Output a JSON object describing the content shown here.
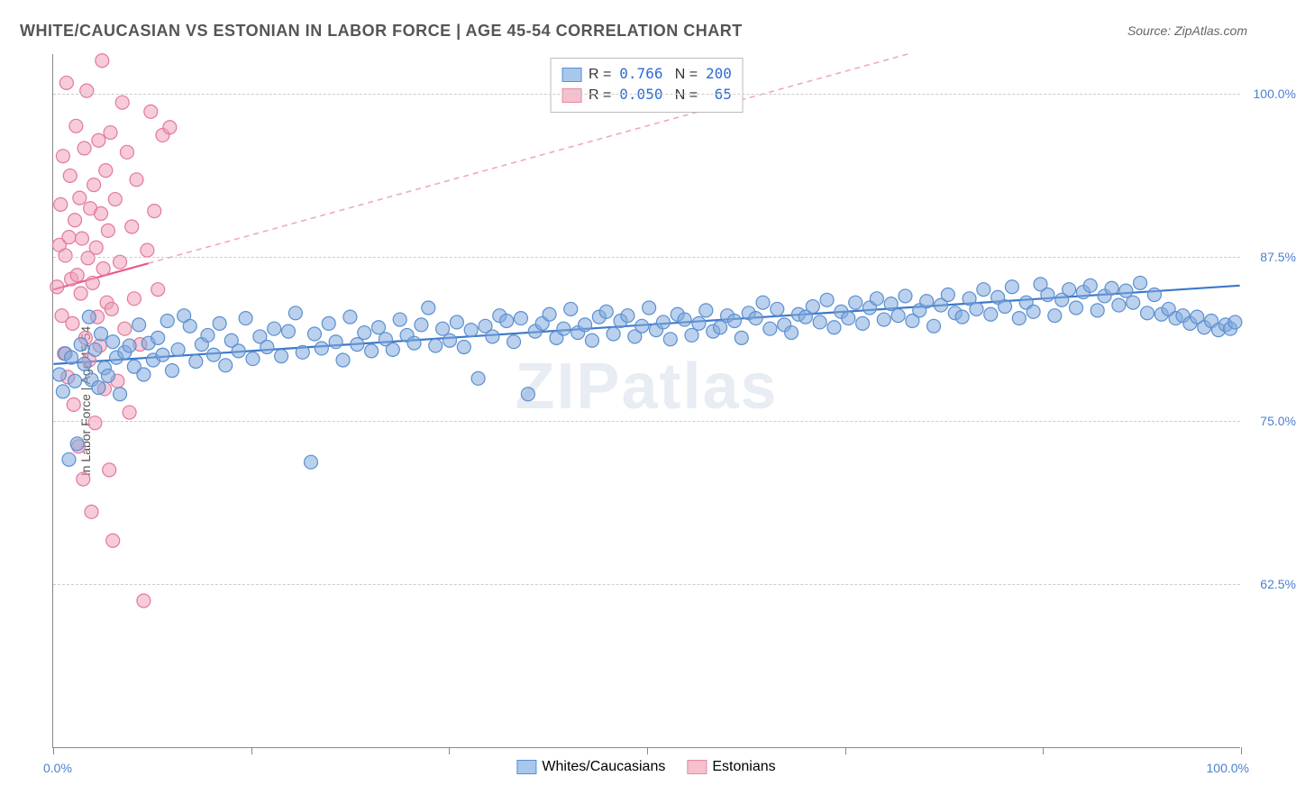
{
  "title": "WHITE/CAUCASIAN VS ESTONIAN IN LABOR FORCE | AGE 45-54 CORRELATION CHART",
  "source": "Source: ZipAtlas.com",
  "watermark": "ZIPatlas",
  "ylabel": "In Labor Force | Age 45-54",
  "xaxis": {
    "min_label": "0.0%",
    "max_label": "100.0%",
    "min": 0,
    "max": 100,
    "tick_positions": [
      0,
      16.67,
      33.33,
      50,
      66.67,
      83.33,
      100
    ]
  },
  "yaxis": {
    "min": 50,
    "max": 103,
    "ticks": [
      62.5,
      75.0,
      87.5,
      100.0
    ],
    "tick_labels": [
      "62.5%",
      "75.0%",
      "87.5%",
      "100.0%"
    ]
  },
  "grid_color": "#cccccc",
  "axis_color": "#888888",
  "background_color": "#ffffff",
  "legend_top": {
    "rows": [
      {
        "swatch_fill": "#a8c7ec",
        "swatch_stroke": "#5b8fd1",
        "r_label": "R =",
        "r_val": "0.766",
        "n_label": "N =",
        "n_val": "200"
      },
      {
        "swatch_fill": "#f6c0cd",
        "swatch_stroke": "#e58aa3",
        "r_label": "R =",
        "r_val": "0.050",
        "n_label": "N =",
        "n_val": " 65"
      }
    ]
  },
  "legend_bottom": [
    {
      "swatch_fill": "#a8c7ec",
      "swatch_stroke": "#5b8fd1",
      "label": "Whites/Caucasians"
    },
    {
      "swatch_fill": "#f6c0cd",
      "swatch_stroke": "#e58aa3",
      "label": "Estonians"
    }
  ],
  "series": {
    "whites": {
      "type": "scatter",
      "marker": "circle",
      "marker_radius": 7.5,
      "fill": "rgba(130,170,220,0.55)",
      "stroke": "#5b8fd1",
      "stroke_width": 1.2,
      "trend": {
        "x1": 0,
        "y1": 79.3,
        "x2": 100,
        "y2": 85.3,
        "color": "#3d78c9",
        "width": 2.2,
        "dash": "none"
      },
      "points": [
        [
          0.5,
          78.5
        ],
        [
          0.8,
          77.2
        ],
        [
          1.0,
          80.1
        ],
        [
          1.3,
          72.0
        ],
        [
          1.5,
          79.8
        ],
        [
          1.8,
          78.0
        ],
        [
          2.0,
          73.2
        ],
        [
          2.3,
          80.8
        ],
        [
          2.6,
          79.3
        ],
        [
          3.0,
          82.9
        ],
        [
          3.2,
          78.1
        ],
        [
          3.5,
          80.4
        ],
        [
          3.8,
          77.5
        ],
        [
          4.0,
          81.6
        ],
        [
          4.3,
          79.0
        ],
        [
          4.6,
          78.4
        ],
        [
          5.0,
          81.0
        ],
        [
          5.3,
          79.8
        ],
        [
          5.6,
          77.0
        ],
        [
          6.0,
          80.2
        ],
        [
          6.4,
          80.7
        ],
        [
          6.8,
          79.1
        ],
        [
          7.2,
          82.3
        ],
        [
          7.6,
          78.5
        ],
        [
          8.0,
          80.9
        ],
        [
          8.4,
          79.6
        ],
        [
          8.8,
          81.3
        ],
        [
          9.2,
          80.0
        ],
        [
          9.6,
          82.6
        ],
        [
          10.0,
          78.8
        ],
        [
          10.5,
          80.4
        ],
        [
          11.0,
          83.0
        ],
        [
          11.5,
          82.2
        ],
        [
          12.0,
          79.5
        ],
        [
          12.5,
          80.8
        ],
        [
          13.0,
          81.5
        ],
        [
          13.5,
          80.0
        ],
        [
          14.0,
          82.4
        ],
        [
          14.5,
          79.2
        ],
        [
          15.0,
          81.1
        ],
        [
          15.6,
          80.3
        ],
        [
          16.2,
          82.8
        ],
        [
          16.8,
          79.7
        ],
        [
          17.4,
          81.4
        ],
        [
          18.0,
          80.6
        ],
        [
          18.6,
          82.0
        ],
        [
          19.2,
          79.9
        ],
        [
          19.8,
          81.8
        ],
        [
          20.4,
          83.2
        ],
        [
          21.0,
          80.2
        ],
        [
          21.7,
          71.8
        ],
        [
          22.0,
          81.6
        ],
        [
          22.6,
          80.5
        ],
        [
          23.2,
          82.4
        ],
        [
          23.8,
          81.0
        ],
        [
          24.4,
          79.6
        ],
        [
          25.0,
          82.9
        ],
        [
          25.6,
          80.8
        ],
        [
          26.2,
          81.7
        ],
        [
          26.8,
          80.3
        ],
        [
          27.4,
          82.1
        ],
        [
          28.0,
          81.2
        ],
        [
          28.6,
          80.4
        ],
        [
          29.2,
          82.7
        ],
        [
          29.8,
          81.5
        ],
        [
          30.4,
          80.9
        ],
        [
          31.0,
          82.3
        ],
        [
          31.6,
          83.6
        ],
        [
          32.2,
          80.7
        ],
        [
          32.8,
          82.0
        ],
        [
          33.4,
          81.1
        ],
        [
          34.0,
          82.5
        ],
        [
          34.6,
          80.6
        ],
        [
          35.2,
          81.9
        ],
        [
          35.8,
          78.2
        ],
        [
          36.4,
          82.2
        ],
        [
          37.0,
          81.4
        ],
        [
          37.6,
          83.0
        ],
        [
          38.2,
          82.6
        ],
        [
          38.8,
          81.0
        ],
        [
          39.4,
          82.8
        ],
        [
          40.0,
          77.0
        ],
        [
          40.6,
          81.8
        ],
        [
          41.2,
          82.4
        ],
        [
          41.8,
          83.1
        ],
        [
          42.4,
          81.3
        ],
        [
          43.0,
          82.0
        ],
        [
          43.6,
          83.5
        ],
        [
          44.2,
          81.7
        ],
        [
          44.8,
          82.3
        ],
        [
          45.4,
          81.1
        ],
        [
          46.0,
          82.9
        ],
        [
          46.6,
          83.3
        ],
        [
          47.2,
          81.6
        ],
        [
          47.8,
          82.6
        ],
        [
          48.4,
          83.0
        ],
        [
          49.0,
          81.4
        ],
        [
          49.6,
          82.2
        ],
        [
          50.2,
          83.6
        ],
        [
          50.8,
          81.9
        ],
        [
          51.4,
          82.5
        ],
        [
          52.0,
          81.2
        ],
        [
          52.6,
          83.1
        ],
        [
          53.2,
          82.7
        ],
        [
          53.8,
          81.5
        ],
        [
          54.4,
          82.4
        ],
        [
          55.0,
          83.4
        ],
        [
          55.6,
          81.8
        ],
        [
          56.2,
          82.1
        ],
        [
          56.8,
          83.0
        ],
        [
          57.4,
          82.6
        ],
        [
          58.0,
          81.3
        ],
        [
          58.6,
          83.2
        ],
        [
          59.2,
          82.8
        ],
        [
          59.8,
          84.0
        ],
        [
          60.4,
          82.0
        ],
        [
          61.0,
          83.5
        ],
        [
          61.6,
          82.3
        ],
        [
          62.2,
          81.7
        ],
        [
          62.8,
          83.1
        ],
        [
          63.4,
          82.9
        ],
        [
          64.0,
          83.7
        ],
        [
          64.6,
          82.5
        ],
        [
          65.2,
          84.2
        ],
        [
          65.8,
          82.1
        ],
        [
          66.4,
          83.3
        ],
        [
          67.0,
          82.8
        ],
        [
          67.6,
          84.0
        ],
        [
          68.2,
          82.4
        ],
        [
          68.8,
          83.6
        ],
        [
          69.4,
          84.3
        ],
        [
          70.0,
          82.7
        ],
        [
          70.6,
          83.9
        ],
        [
          71.2,
          83.0
        ],
        [
          71.8,
          84.5
        ],
        [
          72.4,
          82.6
        ],
        [
          73.0,
          83.4
        ],
        [
          73.6,
          84.1
        ],
        [
          74.2,
          82.2
        ],
        [
          74.8,
          83.8
        ],
        [
          75.4,
          84.6
        ],
        [
          76.0,
          83.2
        ],
        [
          76.6,
          82.9
        ],
        [
          77.2,
          84.3
        ],
        [
          77.8,
          83.5
        ],
        [
          78.4,
          85.0
        ],
        [
          79.0,
          83.1
        ],
        [
          79.6,
          84.4
        ],
        [
          80.2,
          83.7
        ],
        [
          80.8,
          85.2
        ],
        [
          81.4,
          82.8
        ],
        [
          82.0,
          84.0
        ],
        [
          82.6,
          83.3
        ],
        [
          83.2,
          85.4
        ],
        [
          83.8,
          84.6
        ],
        [
          84.4,
          83.0
        ],
        [
          85.0,
          84.2
        ],
        [
          85.6,
          85.0
        ],
        [
          86.2,
          83.6
        ],
        [
          86.8,
          84.8
        ],
        [
          87.4,
          85.3
        ],
        [
          88.0,
          83.4
        ],
        [
          88.6,
          84.5
        ],
        [
          89.2,
          85.1
        ],
        [
          89.8,
          83.8
        ],
        [
          90.4,
          84.9
        ],
        [
          91.0,
          84.0
        ],
        [
          91.6,
          85.5
        ],
        [
          92.2,
          83.2
        ],
        [
          92.8,
          84.6
        ],
        [
          93.4,
          83.1
        ],
        [
          94.0,
          83.5
        ],
        [
          94.6,
          82.8
        ],
        [
          95.2,
          83.0
        ],
        [
          95.8,
          82.4
        ],
        [
          96.4,
          82.9
        ],
        [
          97.0,
          82.1
        ],
        [
          97.6,
          82.6
        ],
        [
          98.2,
          81.9
        ],
        [
          98.8,
          82.3
        ],
        [
          99.2,
          82.0
        ],
        [
          99.6,
          82.5
        ]
      ]
    },
    "estonians": {
      "type": "scatter",
      "marker": "circle",
      "marker_radius": 7.5,
      "fill": "rgba(240,160,185,0.55)",
      "stroke": "#e17a9a",
      "stroke_width": 1.2,
      "trend_solid": {
        "x1": 0,
        "y1": 85.0,
        "x2": 8,
        "y2": 87.0,
        "color": "#e85b88",
        "width": 2.2
      },
      "trend_dash": {
        "x1": 8,
        "y1": 87.0,
        "x2": 72,
        "y2": 103.0,
        "color": "#f0a8bc",
        "width": 1.6,
        "dash": "6,5"
      },
      "points": [
        [
          0.3,
          85.2
        ],
        [
          0.5,
          88.4
        ],
        [
          0.6,
          91.5
        ],
        [
          0.7,
          83.0
        ],
        [
          0.8,
          95.2
        ],
        [
          0.9,
          80.1
        ],
        [
          1.0,
          87.6
        ],
        [
          1.1,
          100.8
        ],
        [
          1.2,
          78.3
        ],
        [
          1.3,
          89.0
        ],
        [
          1.4,
          93.7
        ],
        [
          1.5,
          85.8
        ],
        [
          1.6,
          82.4
        ],
        [
          1.7,
          76.2
        ],
        [
          1.8,
          90.3
        ],
        [
          1.9,
          97.5
        ],
        [
          2.0,
          86.1
        ],
        [
          2.1,
          73.0
        ],
        [
          2.2,
          92.0
        ],
        [
          2.3,
          84.7
        ],
        [
          2.4,
          88.9
        ],
        [
          2.5,
          70.5
        ],
        [
          2.6,
          95.8
        ],
        [
          2.7,
          81.3
        ],
        [
          2.8,
          100.2
        ],
        [
          2.9,
          87.4
        ],
        [
          3.0,
          79.6
        ],
        [
          3.1,
          91.2
        ],
        [
          3.2,
          68.0
        ],
        [
          3.3,
          85.5
        ],
        [
          3.4,
          93.0
        ],
        [
          3.5,
          74.8
        ],
        [
          3.6,
          88.2
        ],
        [
          3.7,
          82.9
        ],
        [
          3.8,
          96.4
        ],
        [
          3.9,
          80.7
        ],
        [
          4.0,
          90.8
        ],
        [
          4.1,
          102.5
        ],
        [
          4.2,
          86.6
        ],
        [
          4.3,
          77.4
        ],
        [
          4.4,
          94.1
        ],
        [
          4.5,
          84.0
        ],
        [
          4.6,
          89.5
        ],
        [
          4.7,
          71.2
        ],
        [
          4.8,
          97.0
        ],
        [
          4.9,
          83.5
        ],
        [
          5.0,
          65.8
        ],
        [
          5.2,
          91.9
        ],
        [
          5.4,
          78.0
        ],
        [
          5.6,
          87.1
        ],
        [
          5.8,
          99.3
        ],
        [
          6.0,
          82.0
        ],
        [
          6.2,
          95.5
        ],
        [
          6.4,
          75.6
        ],
        [
          6.6,
          89.8
        ],
        [
          6.8,
          84.3
        ],
        [
          7.0,
          93.4
        ],
        [
          7.3,
          80.8
        ],
        [
          7.6,
          61.2
        ],
        [
          7.9,
          88.0
        ],
        [
          8.2,
          98.6
        ],
        [
          9.2,
          96.8
        ],
        [
          9.8,
          97.4
        ],
        [
          8.8,
          85.0
        ],
        [
          8.5,
          91.0
        ]
      ]
    }
  }
}
